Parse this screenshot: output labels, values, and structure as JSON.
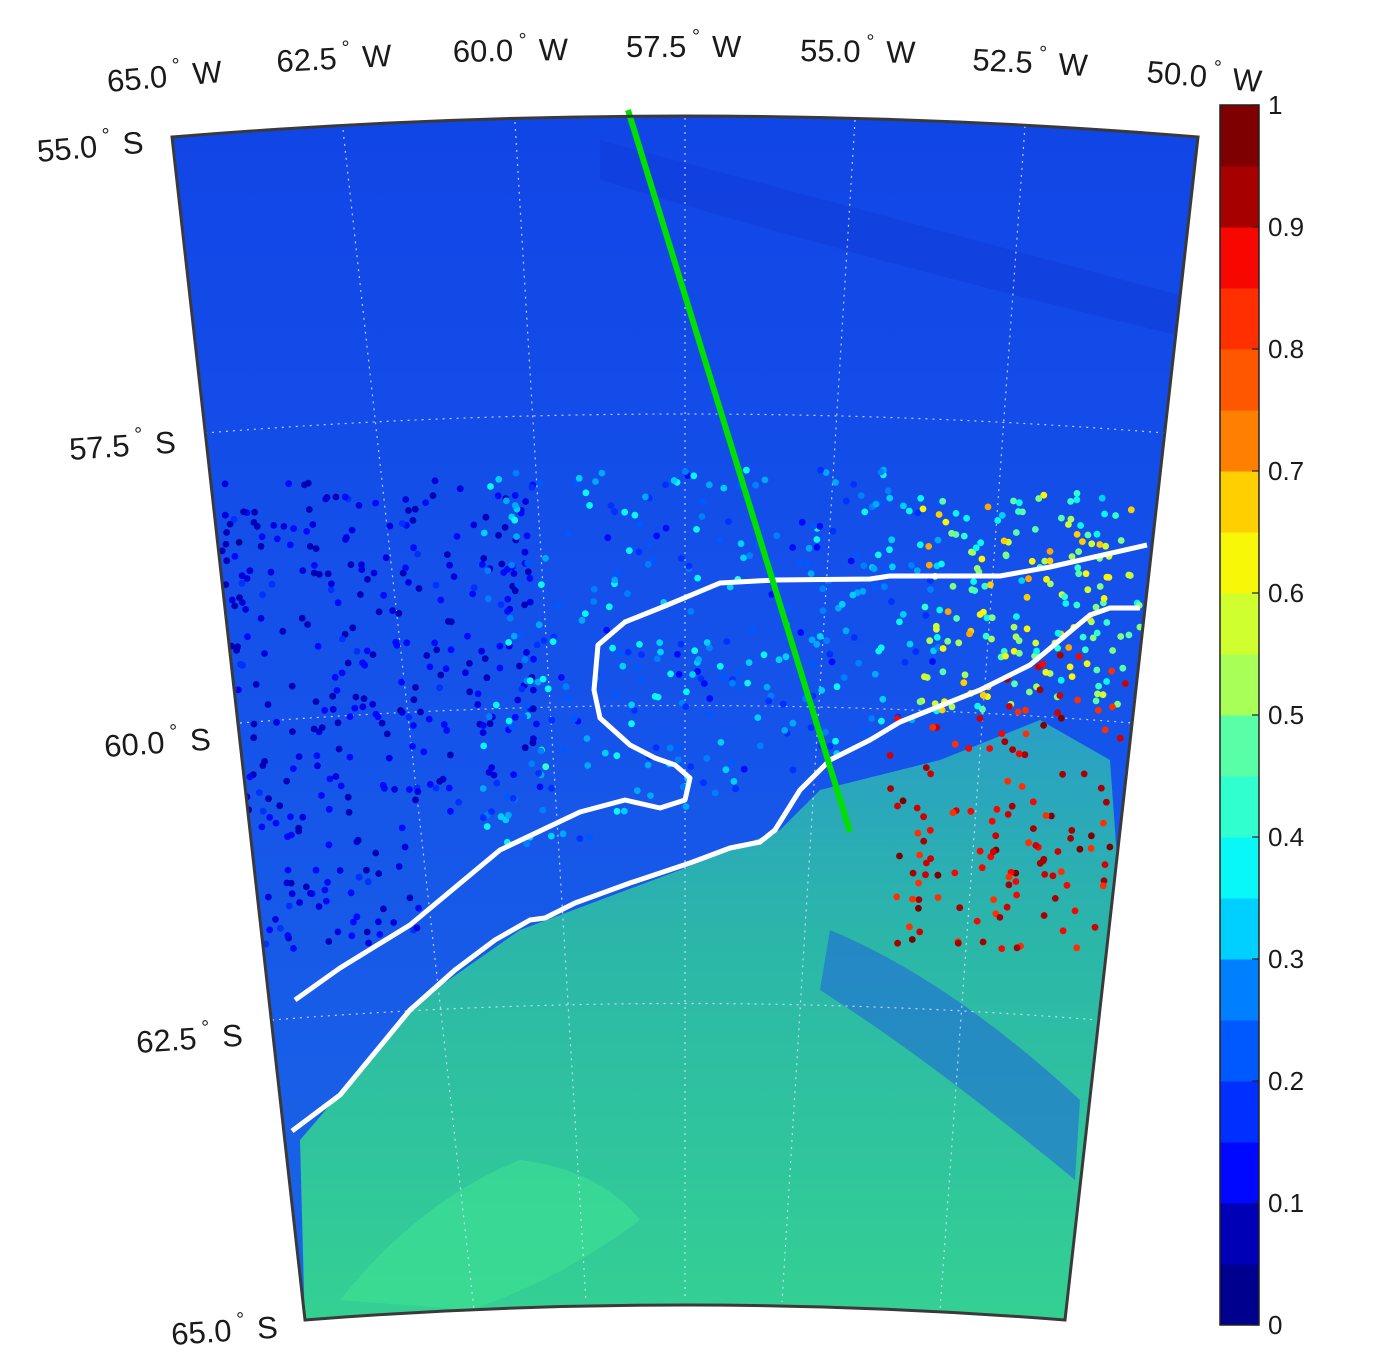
{
  "map": {
    "lon_labels": [
      {
        "value": "65.0",
        "deg": "°",
        "hemi": "W"
      },
      {
        "value": "62.5",
        "deg": "°",
        "hemi": "W"
      },
      {
        "value": "60.0",
        "deg": "°",
        "hemi": "W"
      },
      {
        "value": "57.5",
        "deg": "°",
        "hemi": "W"
      },
      {
        "value": "55.0",
        "deg": "°",
        "hemi": "W"
      },
      {
        "value": "52.5",
        "deg": "°",
        "hemi": "W"
      },
      {
        "value": "50.0",
        "deg": "°",
        "hemi": "W"
      }
    ],
    "lat_labels": [
      {
        "value": "55.0",
        "deg": "°",
        "hemi": "S"
      },
      {
        "value": "57.5",
        "deg": "°",
        "hemi": "S"
      },
      {
        "value": "60.0",
        "deg": "°",
        "hemi": "S"
      },
      {
        "value": "62.5",
        "deg": "°",
        "hemi": "S"
      },
      {
        "value": "65.0",
        "deg": "°",
        "hemi": "S"
      }
    ],
    "extent": {
      "lon": [
        -65,
        -50
      ],
      "lat": [
        -65,
        -55
      ]
    },
    "grid": "dotted"
  },
  "colorbar": {
    "ticks": [
      "0",
      "0.1",
      "0.2",
      "0.3",
      "0.4",
      "0.5",
      "0.6",
      "0.7",
      "0.8",
      "0.9",
      "1"
    ],
    "levels": 20,
    "range": [
      0,
      1
    ],
    "colormap": "jet",
    "colors": [
      "#00008f",
      "#0000b7",
      "#0000df",
      "#0008ff",
      "#0030ff",
      "#0058ff",
      "#0080ff",
      "#00a8ff",
      "#00d0ff",
      "#08f8f7",
      "#30ffcf",
      "#58ffa7",
      "#80ff7f",
      "#a8ff57",
      "#d0ff2f",
      "#f8f707",
      "#ffcf00",
      "#ffa700",
      "#ff7f00",
      "#ff5700",
      "#ff2f00",
      "#f70700",
      "#cf0000",
      "#a70000",
      "#7f0000"
    ]
  },
  "colors": {
    "ocean_deep": "#1347e8",
    "ocean_shelf": "#2fc3a1",
    "front_line": "#ffffff",
    "section_line": "#00e000"
  }
}
